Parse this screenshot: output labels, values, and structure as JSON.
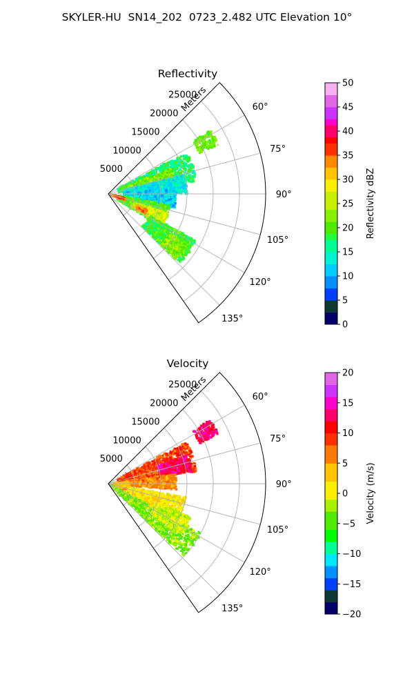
{
  "figure": {
    "title": "SKYLER-HU  SN14_202  0723_2.482 UTC Elevation 10°"
  },
  "colors": {
    "grid": "#b0b0b0",
    "background": "#ffffff"
  },
  "chart_data": [
    {
      "type": "heatmap",
      "projection": "polar-sector",
      "title": "Reflectivity",
      "radial_label": "Meters",
      "r_ticks": [
        5000,
        10000,
        15000,
        20000,
        25000
      ],
      "r_tick_labels": [
        "5000",
        "10000",
        "15000",
        "20000",
        "25000"
      ],
      "r_range": [
        0,
        30000
      ],
      "theta_ticks": [
        60,
        75,
        90,
        105,
        120,
        135
      ],
      "theta_tick_labels": [
        "60°",
        "75°",
        "90°",
        "105°",
        "120°",
        "135°"
      ],
      "theta_range": [
        45,
        145
      ],
      "grid": true,
      "colorbar": {
        "label": "Reflectivity dBZ",
        "range": [
          0,
          50
        ],
        "ticks": [
          0,
          5,
          10,
          15,
          20,
          25,
          30,
          35,
          40,
          45,
          50
        ],
        "tick_labels": [
          "0",
          "5",
          "10",
          "15",
          "20",
          "25",
          "30",
          "35",
          "40",
          "45",
          "50"
        ],
        "colormap": [
          [
            0,
            "#03006b"
          ],
          [
            3,
            "#0c3a33"
          ],
          [
            5,
            "#0040ff"
          ],
          [
            8,
            "#0090ff"
          ],
          [
            10,
            "#00ccff"
          ],
          [
            13,
            "#00f2d0"
          ],
          [
            15,
            "#00ff96"
          ],
          [
            17,
            "#22ff40"
          ],
          [
            19,
            "#4fe800"
          ],
          [
            21,
            "#86f000"
          ],
          [
            24,
            "#c4f200"
          ],
          [
            27,
            "#f8f000"
          ],
          [
            30,
            "#ffc400"
          ],
          [
            32,
            "#ff8a00"
          ],
          [
            35,
            "#ff3000"
          ],
          [
            37,
            "#ff0000"
          ],
          [
            39,
            "#ff0066"
          ],
          [
            41,
            "#ff00cc"
          ],
          [
            43,
            "#cc33ff"
          ],
          [
            45,
            "#e066e6"
          ],
          [
            48,
            "#f5b0f0"
          ],
          [
            50,
            "#ffe8fa"
          ]
        ]
      },
      "echo_regions": [
        {
          "theta": [
            58,
            66
          ],
          "r": [
            19000,
            23000
          ],
          "value": 21
        },
        {
          "theta": [
            62,
            82
          ],
          "r": [
            2000,
            17000
          ],
          "value": 17
        },
        {
          "theta": [
            68,
            80
          ],
          "r": [
            3000,
            13000
          ],
          "value": 22
        },
        {
          "theta": [
            76,
            90
          ],
          "r": [
            3000,
            15000
          ],
          "value": 14
        },
        {
          "theta": [
            85,
            102
          ],
          "r": [
            3000,
            13000
          ],
          "value": 12
        },
        {
          "theta": [
            100,
            122
          ],
          "r": [
            2000,
            12000
          ],
          "value": 20
        },
        {
          "theta": [
            108,
            120
          ],
          "r": [
            5000,
            12000
          ],
          "value": 26
        },
        {
          "theta": [
            112,
            118
          ],
          "r": [
            6000,
            8000
          ],
          "value": 34
        },
        {
          "theta": [
            104,
            110
          ],
          "r": [
            500,
            3500
          ],
          "value": 36
        },
        {
          "theta": [
            118,
            134
          ],
          "r": [
            9000,
            19000
          ],
          "value": 19
        },
        {
          "theta": [
            123,
            134
          ],
          "r": [
            14000,
            18000
          ],
          "value": 22
        }
      ]
    },
    {
      "type": "heatmap",
      "projection": "polar-sector",
      "title": "Velocity",
      "radial_label": "Meters",
      "r_ticks": [
        5000,
        10000,
        15000,
        20000,
        25000
      ],
      "r_tick_labels": [
        "5000",
        "10000",
        "15000",
        "20000",
        "25000"
      ],
      "r_range": [
        0,
        30000
      ],
      "theta_ticks": [
        60,
        75,
        90,
        105,
        120,
        135
      ],
      "theta_tick_labels": [
        "60°",
        "75°",
        "90°",
        "105°",
        "120°",
        "135°"
      ],
      "theta_range": [
        45,
        145
      ],
      "grid": true,
      "colorbar": {
        "label": "Velocity (m/s)",
        "range": [
          -20,
          20
        ],
        "ticks": [
          -20,
          -15,
          -10,
          -5,
          0,
          5,
          10,
          15,
          20
        ],
        "tick_labels": [
          "−20",
          "−15",
          "−10",
          "−5",
          "0",
          "5",
          "10",
          "15",
          "20"
        ],
        "colormap": [
          [
            -20,
            "#03006b"
          ],
          [
            -18,
            "#0c3a33"
          ],
          [
            -16,
            "#0040ff"
          ],
          [
            -14,
            "#0090ff"
          ],
          [
            -12,
            "#00e6ff"
          ],
          [
            -10,
            "#00ff96"
          ],
          [
            -8,
            "#00ff00"
          ],
          [
            -6,
            "#4fe800"
          ],
          [
            -3,
            "#a6f000"
          ],
          [
            -1,
            "#f8f000"
          ],
          [
            2,
            "#ffc400"
          ],
          [
            5,
            "#ff7a00"
          ],
          [
            8,
            "#ff3000"
          ],
          [
            10,
            "#ff0000"
          ],
          [
            12,
            "#ff0066"
          ],
          [
            14,
            "#ff00cc"
          ],
          [
            16,
            "#cc33ff"
          ],
          [
            18,
            "#e066e6"
          ],
          [
            20,
            "#ffe8fa"
          ]
        ]
      },
      "echo_regions": [
        {
          "theta": [
            58,
            66
          ],
          "r": [
            19000,
            23000
          ],
          "value": 13
        },
        {
          "theta": [
            62,
            82
          ],
          "r": [
            2000,
            17000
          ],
          "value": 9
        },
        {
          "theta": [
            70,
            82
          ],
          "r": [
            10000,
            16000
          ],
          "value": 13
        },
        {
          "theta": [
            82,
            95
          ],
          "r": [
            3000,
            13000
          ],
          "value": 6
        },
        {
          "theta": [
            85,
            102
          ],
          "r": [
            1000,
            4000
          ],
          "value": 3
        },
        {
          "theta": [
            100,
            118
          ],
          "r": [
            4000,
            15000
          ],
          "value": 1
        },
        {
          "theta": [
            104,
            112
          ],
          "r": [
            500,
            3500
          ],
          "value": 4
        },
        {
          "theta": [
            118,
            134
          ],
          "r": [
            0,
            20000
          ],
          "value": -3
        },
        {
          "theta": [
            112,
            125
          ],
          "r": [
            10000,
            17000
          ],
          "value": -1
        }
      ]
    }
  ]
}
